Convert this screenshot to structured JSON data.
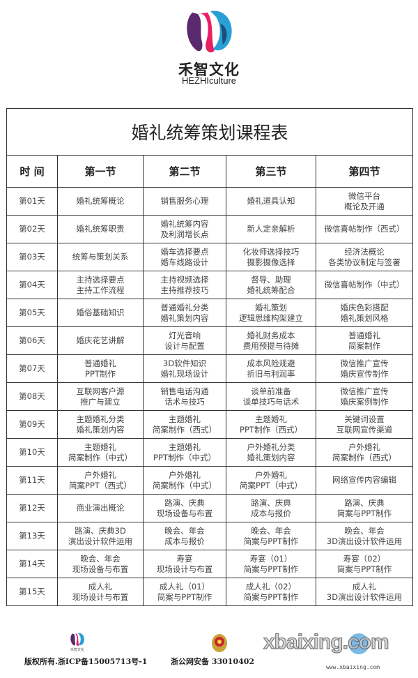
{
  "brand": {
    "name_cn": "禾智文化",
    "name_en": "HEZHIculture",
    "colors": {
      "pink": "#e91e63",
      "blue": "#2a9fd6",
      "purple": "#5b2a6e"
    }
  },
  "table": {
    "title": "婚礼统筹策划课程表",
    "headers": [
      "时 间",
      "第一节",
      "第二节",
      "第三节",
      "第四节"
    ],
    "rows": [
      [
        "第01天",
        "婚礼统筹概论",
        "销售服务心理",
        "婚礼道具认知",
        "微信平台\n概论及开通"
      ],
      [
        "第02天",
        "婚礼统筹职责",
        "婚礼统筹内容\n及利润增长点",
        "新人定亲解析",
        "微信喜帖制作（西式）"
      ],
      [
        "第03天",
        "统筹与策划关系",
        "婚车选择要点\n婚车线路设计",
        "化妆师选择技巧\n摄影摄像选择",
        "经济法概论\n各类协议制定与签署"
      ],
      [
        "第04天",
        "主持选择要点\n主持工作流程",
        "主持视频选择\n主持推荐技巧",
        "督导、助理\n婚礼统筹配合",
        "微信喜帖制作（中式）"
      ],
      [
        "第05天",
        "婚俗基础知识",
        "普通婚礼分类\n婚礼策划内容",
        "婚礼策划\n逻辑思维构架建立",
        "婚庆色彩搭配\n婚礼策划风格"
      ],
      [
        "第06天",
        "婚庆花艺讲解",
        "灯光音响\n设计与配置",
        "婚礼财务成本\n费用预提与待摊",
        "普通婚礼\n简案制作"
      ],
      [
        "第07天",
        "普通婚礼\nPPT制作",
        "3D软件知识\n婚礼现场设计",
        "成本风险规避\n折旧与利润率",
        "微信推广宣传\n婚庆宣传制作"
      ],
      [
        "第08天",
        "互联网客户源\n推广与建立",
        "销售电话沟通\n话术与技巧",
        "谈单前准备\n谈单技巧与话术",
        "微信推广宣传\n婚庆案例制作"
      ],
      [
        "第09天",
        "主题婚礼分类\n婚礼策划内容",
        "主题婚礼\n简案制作（西式）",
        "主题婚礼\nPPT制作（西式）",
        "关键词设置\n互联网宣传渠道"
      ],
      [
        "第10天",
        "主题婚礼\n简案制作（中式）",
        "主题婚礼\nPPT制作（中式）",
        "户外婚礼分类\n婚礼策划内容",
        "户外婚礼\n简案制作（西式）"
      ],
      [
        "第11天",
        "户外婚礼\n简案PPT（西式）",
        "户外婚礼\n简案制作（中式）",
        "户外婚礼\n简案PPT（中式）",
        "网络宣传内容编辑"
      ],
      [
        "第12天",
        "商业演出概论",
        "路演、庆典\n现场设备与布置",
        "路演、庆典\n成本与报价",
        "路演、庆典\n简案与PPT制作"
      ],
      [
        "第13天",
        "路演、庆典3D\n演出设计软件运用",
        "晚会、年会\n成本与报价",
        "晚会、年会\n简案与PPT制作",
        "晚会、年会\n3D演出设计软件运用"
      ],
      [
        "第14天",
        "晚会、年会\n现场设备与布置",
        "寿宴\n现场设计与布置",
        "寿宴（01）\n简案与PPT制作",
        "寿宴（02）\n简案与PPT制作"
      ],
      [
        "第15天",
        "成人礼\n现场设计与布置",
        "成人礼（01）\n简案与PPT制作",
        "成人礼（02）\n简案与PPT制作",
        "成人礼\n3D演出设计软件运用"
      ]
    ]
  },
  "footer": {
    "logo_text": "禾智文化",
    "copyright": "版权所有.浙ICP备15005713号-1",
    "police_record": "浙公网安备 33010402",
    "watermark": "xbaixing.com",
    "watermark_url": "www.xbaixing.com"
  }
}
